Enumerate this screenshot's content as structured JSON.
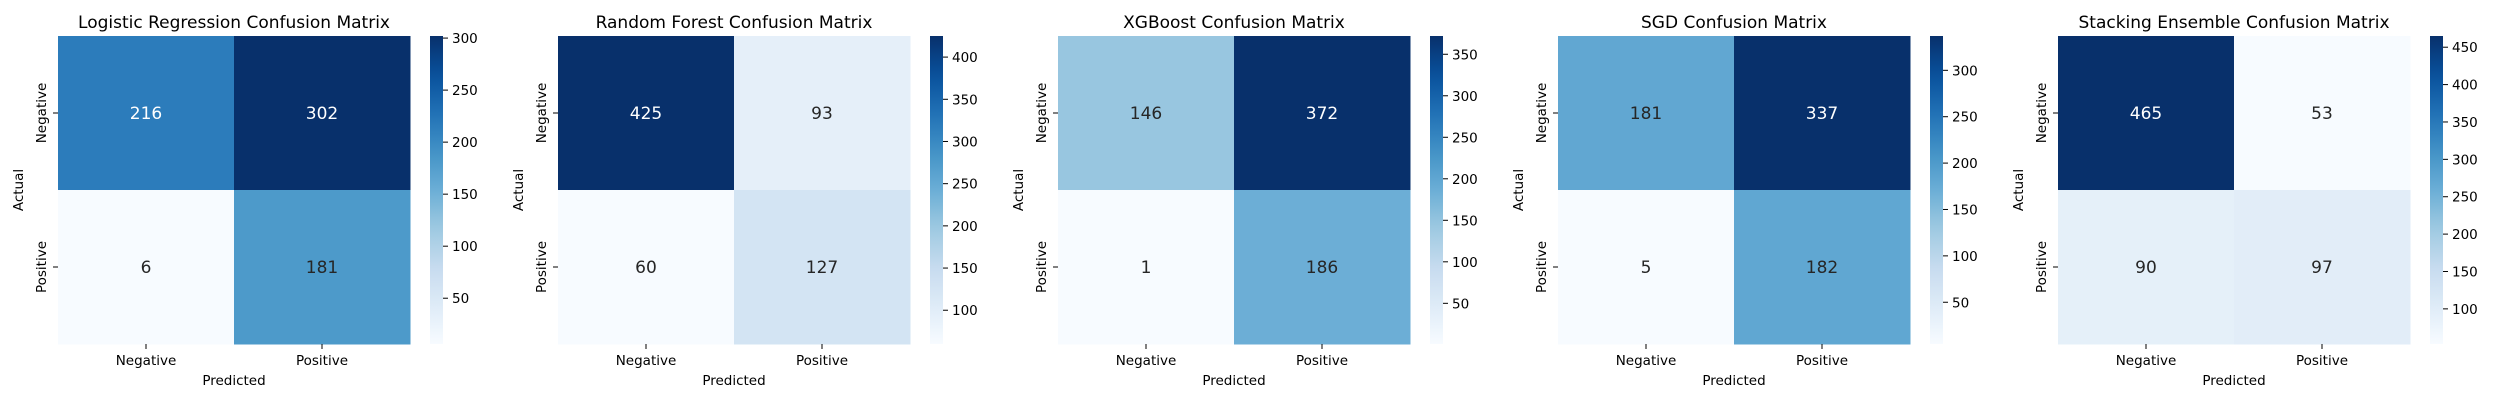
{
  "chart_data": [
    {
      "type": "heatmap",
      "title": "Logistic Regression Confusion Matrix",
      "xlabel": "Predicted",
      "ylabel": "Actual",
      "x_categories": [
        "Negative",
        "Positive"
      ],
      "y_categories": [
        "Negative",
        "Positive"
      ],
      "values": [
        [
          216,
          302
        ],
        [
          6,
          181
        ]
      ],
      "colormap": "Blues",
      "colorbar_ticks": [
        50,
        100,
        150,
        200,
        250,
        300
      ]
    },
    {
      "type": "heatmap",
      "title": "Random Forest Confusion Matrix",
      "xlabel": "Predicted",
      "ylabel": "Actual",
      "x_categories": [
        "Negative",
        "Positive"
      ],
      "y_categories": [
        "Negative",
        "Positive"
      ],
      "values": [
        [
          425,
          93
        ],
        [
          60,
          127
        ]
      ],
      "colormap": "Blues",
      "colorbar_ticks": [
        100,
        150,
        200,
        250,
        300,
        350,
        400
      ]
    },
    {
      "type": "heatmap",
      "title": "XGBoost Confusion Matrix",
      "xlabel": "Predicted",
      "ylabel": "Actual",
      "x_categories": [
        "Negative",
        "Positive"
      ],
      "y_categories": [
        "Negative",
        "Positive"
      ],
      "values": [
        [
          146,
          372
        ],
        [
          1,
          186
        ]
      ],
      "colormap": "Blues",
      "colorbar_ticks": [
        50,
        100,
        150,
        200,
        250,
        300,
        350
      ]
    },
    {
      "type": "heatmap",
      "title": "SGD Confusion Matrix",
      "xlabel": "Predicted",
      "ylabel": "Actual",
      "x_categories": [
        "Negative",
        "Positive"
      ],
      "y_categories": [
        "Negative",
        "Positive"
      ],
      "values": [
        [
          181,
          337
        ],
        [
          5,
          182
        ]
      ],
      "colormap": "Blues",
      "colorbar_ticks": [
        50,
        100,
        150,
        200,
        250,
        300
      ]
    },
    {
      "type": "heatmap",
      "title": "Stacking Ensemble Confusion Matrix",
      "xlabel": "Predicted",
      "ylabel": "Actual",
      "x_categories": [
        "Negative",
        "Positive"
      ],
      "y_categories": [
        "Negative",
        "Positive"
      ],
      "values": [
        [
          465,
          53
        ],
        [
          90,
          97
        ]
      ],
      "colormap": "Blues",
      "colorbar_ticks": [
        100,
        150,
        200,
        250,
        300,
        350,
        400,
        450
      ]
    }
  ]
}
